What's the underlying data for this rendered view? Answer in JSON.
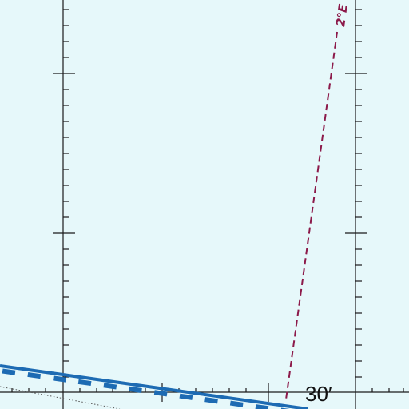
{
  "chart": {
    "background_color": "#e6f8fa",
    "grid_color": "#1a1a1a",
    "boundary_color": "#1d6bb3",
    "isogonic_color": "#8c1a4a",
    "dotted_line_color": "#555555"
  },
  "labels": {
    "isogonic_line": "2°E",
    "minute_tick": "30′"
  }
}
